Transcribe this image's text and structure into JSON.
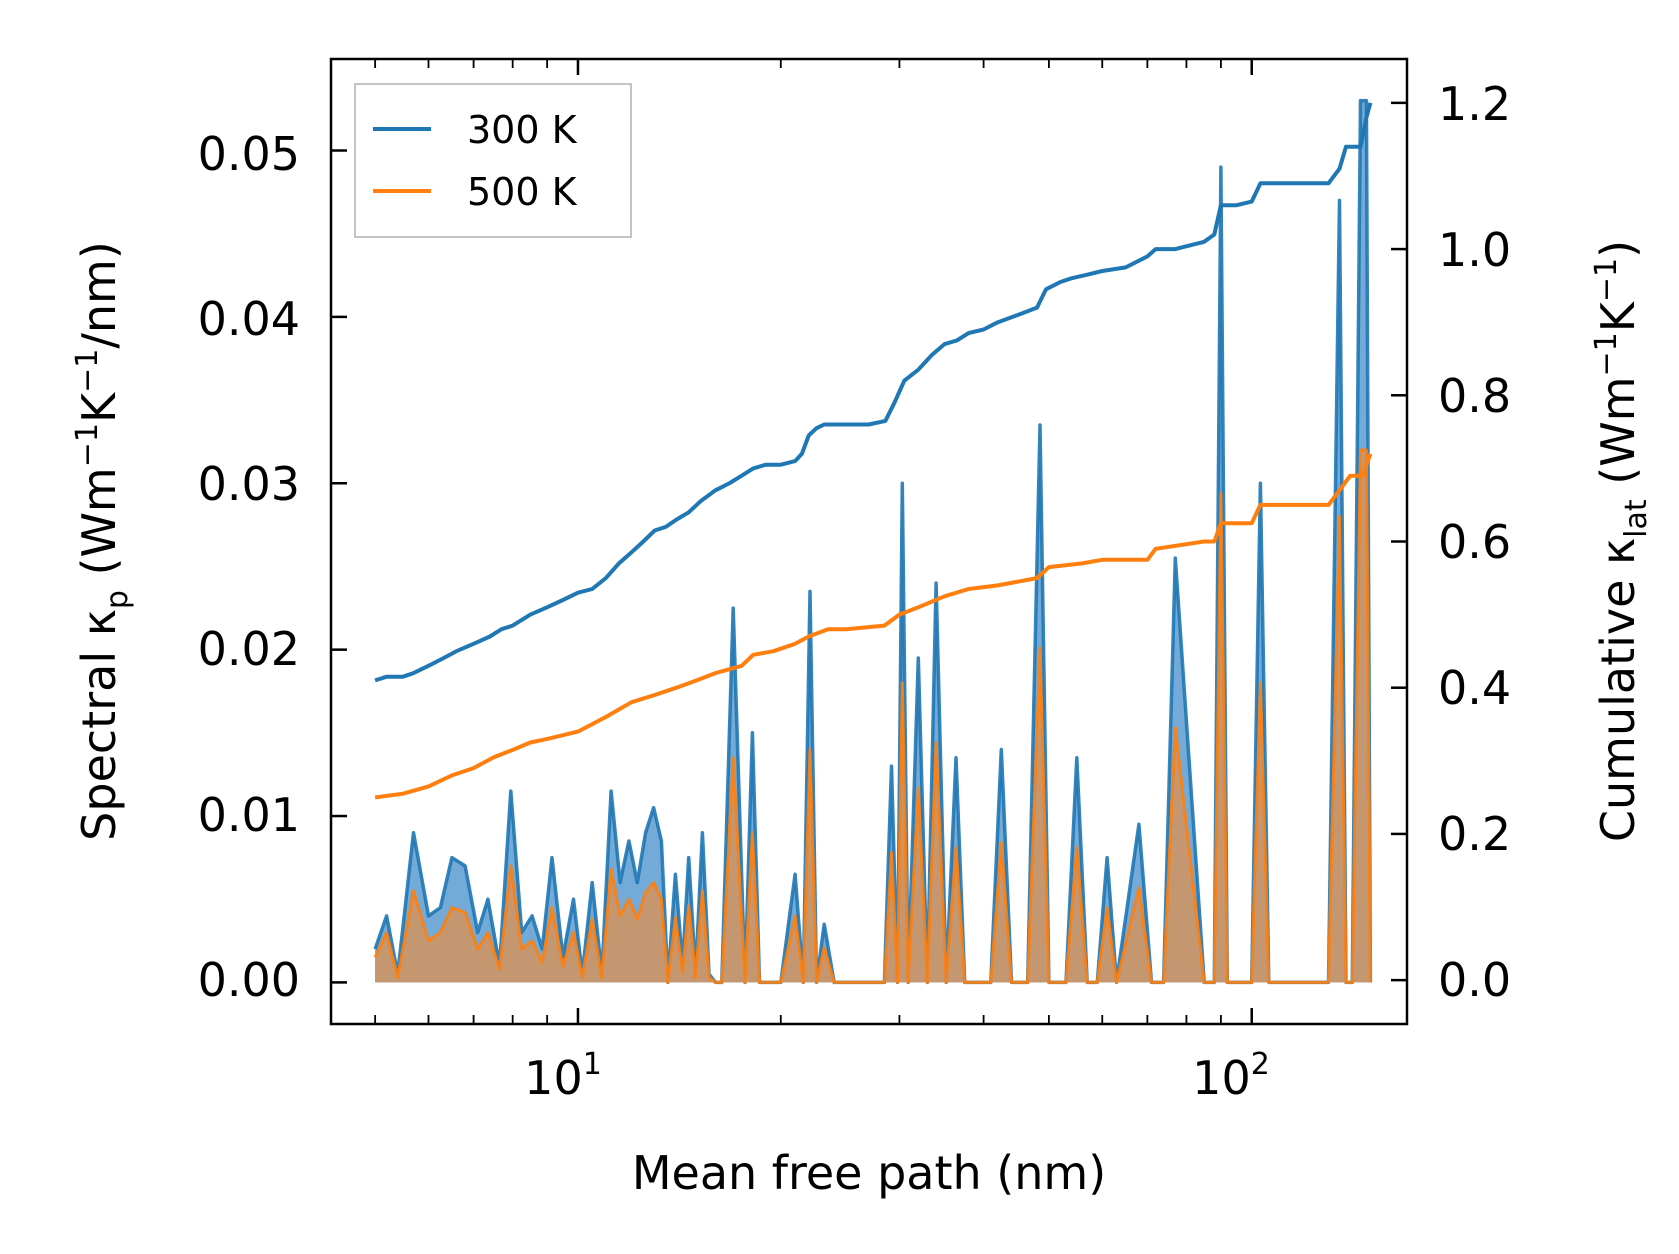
{
  "chart_data": {
    "type": "line",
    "xscale": "log",
    "xlabel": "Mean free path (nm)",
    "ylabel_left": {
      "pre": "Spectral κ",
      "sub": "p",
      "mid": " (Wm",
      "sup1": "−1",
      "k": "K",
      "sup2": "−1",
      "post": "/nm)"
    },
    "ylabel_right": {
      "pre": "Cumulative κ",
      "sub": "lat",
      "mid": " (Wm",
      "sup1": "−1",
      "k": "K",
      "sup2": "−1",
      "post": ")"
    },
    "xlim": [
      4.3,
      170
    ],
    "ylim_left": [
      -0.0025,
      0.0555
    ],
    "ylim_right": [
      -0.06,
      1.26
    ],
    "x_ticks": [
      {
        "value": 10,
        "base": "10",
        "exp": "1"
      },
      {
        "value": 100,
        "base": "10",
        "exp": "2"
      }
    ],
    "y_left_ticks": [
      {
        "value": 0,
        "label": "0.00"
      },
      {
        "value": 0.01,
        "label": "0.01"
      },
      {
        "value": 0.02,
        "label": "0.02"
      },
      {
        "value": 0.03,
        "label": "0.03"
      },
      {
        "value": 0.04,
        "label": "0.04"
      },
      {
        "value": 0.05,
        "label": "0.05"
      }
    ],
    "y_right_ticks": [
      {
        "value": 0,
        "label": "0.0"
      },
      {
        "value": 0.2,
        "label": "0.2"
      },
      {
        "value": 0.4,
        "label": "0.4"
      },
      {
        "value": 0.6,
        "label": "0.6"
      },
      {
        "value": 0.8,
        "label": "0.8"
      },
      {
        "value": 1.0,
        "label": "1.0"
      },
      {
        "value": 1.2,
        "label": "1.2"
      }
    ],
    "legend": {
      "location": "upper-left",
      "entries": [
        "300 K",
        "500 K"
      ]
    },
    "colors": {
      "300K": "#1f77b4",
      "500K": "#ff7f0e",
      "fill_300K": "#5a9bd0",
      "fill_500K": "#c8966a"
    },
    "spectral": {
      "x": [
        5.0,
        5.2,
        5.4,
        5.7,
        6.0,
        6.25,
        6.5,
        6.8,
        7.1,
        7.35,
        7.65,
        7.95,
        8.25,
        8.55,
        8.85,
        9.15,
        9.5,
        9.85,
        10.15,
        10.5,
        10.85,
        11.2,
        11.55,
        11.9,
        12.25,
        12.6,
        12.95,
        13.3,
        13.6,
        13.95,
        14.3,
        14.6,
        14.95,
        15.3,
        15.65,
        16.0,
        16.35,
        17.0,
        17.7,
        18.15,
        18.6,
        19.05,
        20.0,
        21.0,
        21.6,
        22.1,
        22.6,
        23.2,
        24.0,
        24.8,
        25.5,
        28.5,
        29.2,
        29.8,
        30.3,
        30.9,
        32.0,
        33.0,
        34.0,
        35.2,
        36.4,
        37.5,
        39.0,
        41.0,
        42.5,
        44.0,
        46.5,
        48.5,
        50.0,
        51.5,
        53.0,
        55.0,
        57.0,
        59.0,
        61.0,
        63.0,
        68.0,
        71.0,
        74.0,
        77.0,
        85.0,
        88.0,
        90.0,
        92.0,
        95.0,
        100.0,
        103.0,
        106.0,
        125.0,
        130.0,
        135.0,
        138.0,
        141.0,
        145.0,
        148.0,
        150.0
      ],
      "k300": [
        0.002,
        0.004,
        0.0005,
        0.009,
        0.004,
        0.0045,
        0.0075,
        0.007,
        0.003,
        0.005,
        0.001,
        0.0115,
        0.003,
        0.004,
        0.002,
        0.0075,
        0.0015,
        0.005,
        0.0005,
        0.006,
        0.0005,
        0.0115,
        0.006,
        0.0085,
        0.006,
        0.009,
        0.0105,
        0.0085,
        0.0,
        0.0065,
        0.001,
        0.0075,
        0.0005,
        0.009,
        0.0005,
        0.0,
        0.0,
        0.0225,
        0.0,
        0.015,
        0.0,
        0.0,
        0.0,
        0.0065,
        0.0,
        0.0235,
        0.0,
        0.0035,
        0.0,
        0.0,
        0.0,
        0.0,
        0.013,
        0.0,
        0.03,
        0.0,
        0.0195,
        0.0,
        0.024,
        0.0,
        0.0135,
        0.0,
        0.0,
        0.0,
        0.014,
        0.0,
        0.0,
        0.0335,
        0.0,
        0.0,
        0.0,
        0.0135,
        0.0,
        0.0,
        0.0075,
        0.0,
        0.0095,
        0.0,
        0.0,
        0.0255,
        0.0,
        0.0,
        0.049,
        0.0,
        0.0,
        0.0,
        0.03,
        0.0,
        0.0,
        0.0,
        0.047,
        0.0,
        0.0,
        0.053,
        0.053,
        0.0
      ],
      "k500": [
        0.0015,
        0.003,
        0.0003,
        0.0055,
        0.0025,
        0.003,
        0.0045,
        0.0042,
        0.002,
        0.003,
        0.0008,
        0.007,
        0.002,
        0.0025,
        0.0012,
        0.0045,
        0.001,
        0.003,
        0.0003,
        0.0038,
        0.0003,
        0.0068,
        0.004,
        0.005,
        0.0038,
        0.0054,
        0.006,
        0.005,
        0.0,
        0.0039,
        0.0006,
        0.0046,
        0.0003,
        0.0055,
        0.0003,
        0.0,
        0.0,
        0.0135,
        0.0,
        0.009,
        0.0,
        0.0,
        0.0,
        0.004,
        0.0,
        0.014,
        0.0,
        0.0021,
        0.0,
        0.0,
        0.0,
        0.0,
        0.0078,
        0.0,
        0.018,
        0.0,
        0.0117,
        0.0,
        0.0144,
        0.0,
        0.0081,
        0.0,
        0.0,
        0.0,
        0.0084,
        0.0,
        0.0,
        0.0201,
        0.0,
        0.0,
        0.0,
        0.0081,
        0.0,
        0.0,
        0.0045,
        0.0,
        0.0057,
        0.0,
        0.0,
        0.0153,
        0.0,
        0.0,
        0.0294,
        0.0,
        0.0,
        0.0,
        0.018,
        0.0,
        0.0,
        0.0,
        0.028,
        0.0,
        0.0,
        0.032,
        0.032,
        0.0
      ]
    },
    "cumulative": {
      "x300": [
        5.0,
        5.2,
        5.5,
        5.7,
        6.0,
        6.3,
        6.6,
        7.0,
        7.4,
        7.7,
        8.0,
        8.5,
        9.0,
        9.5,
        10.0,
        10.5,
        11.0,
        11.5,
        12.0,
        12.5,
        13.0,
        13.5,
        14.0,
        14.6,
        15.2,
        16.0,
        16.8,
        17.5,
        18.2,
        19.0,
        20.0,
        21.0,
        21.5,
        22.0,
        22.6,
        23.2,
        24.0,
        25.0,
        27.0,
        28.6,
        29.5,
        30.5,
        32.0,
        33.5,
        35.0,
        36.5,
        38.0,
        40.0,
        42.0,
        45.0,
        48.0,
        49.5,
        52.0,
        54.0,
        57.0,
        60.0,
        65.0,
        70.0,
        72.0,
        77.0,
        85.0,
        88.0,
        90.0,
        95.0,
        100.0,
        103.0,
        110.0,
        120.0,
        130.0,
        135.0,
        138.0,
        142.0,
        145.0,
        148.0,
        150.0
      ],
      "c300": [
        0.41,
        0.415,
        0.415,
        0.42,
        0.43,
        0.44,
        0.45,
        0.46,
        0.47,
        0.48,
        0.485,
        0.5,
        0.51,
        0.52,
        0.53,
        0.535,
        0.55,
        0.57,
        0.585,
        0.6,
        0.615,
        0.62,
        0.63,
        0.64,
        0.655,
        0.67,
        0.68,
        0.69,
        0.7,
        0.705,
        0.705,
        0.71,
        0.72,
        0.745,
        0.755,
        0.76,
        0.76,
        0.76,
        0.76,
        0.765,
        0.79,
        0.82,
        0.835,
        0.855,
        0.87,
        0.875,
        0.885,
        0.89,
        0.9,
        0.91,
        0.92,
        0.945,
        0.955,
        0.96,
        0.965,
        0.97,
        0.975,
        0.99,
        1.0,
        1.0,
        1.01,
        1.02,
        1.06,
        1.06,
        1.065,
        1.09,
        1.09,
        1.09,
        1.09,
        1.11,
        1.14,
        1.14,
        1.14,
        1.18,
        1.2
      ],
      "x500": [
        5.0,
        5.5,
        6.0,
        6.5,
        7.0,
        7.5,
        8.0,
        8.5,
        9.0,
        9.5,
        10.0,
        11.0,
        12.0,
        13.0,
        14.0,
        15.0,
        16.0,
        17.5,
        18.2,
        19.5,
        21.0,
        22.0,
        23.5,
        25.0,
        28.5,
        30.0,
        32.0,
        35.0,
        38.0,
        42.0,
        48.0,
        50.0,
        56.0,
        60.0,
        70.0,
        72.0,
        85.0,
        88.0,
        90.0,
        100.0,
        103.0,
        130.0,
        135.0,
        140.0,
        146.0,
        150.0
      ],
      "c500": [
        0.25,
        0.255,
        0.265,
        0.28,
        0.29,
        0.305,
        0.315,
        0.325,
        0.33,
        0.335,
        0.34,
        0.36,
        0.38,
        0.39,
        0.4,
        0.41,
        0.42,
        0.43,
        0.445,
        0.45,
        0.46,
        0.47,
        0.48,
        0.48,
        0.485,
        0.5,
        0.51,
        0.525,
        0.535,
        0.54,
        0.55,
        0.565,
        0.57,
        0.575,
        0.575,
        0.59,
        0.6,
        0.6,
        0.625,
        0.625,
        0.65,
        0.65,
        0.67,
        0.69,
        0.69,
        0.72
      ]
    }
  }
}
